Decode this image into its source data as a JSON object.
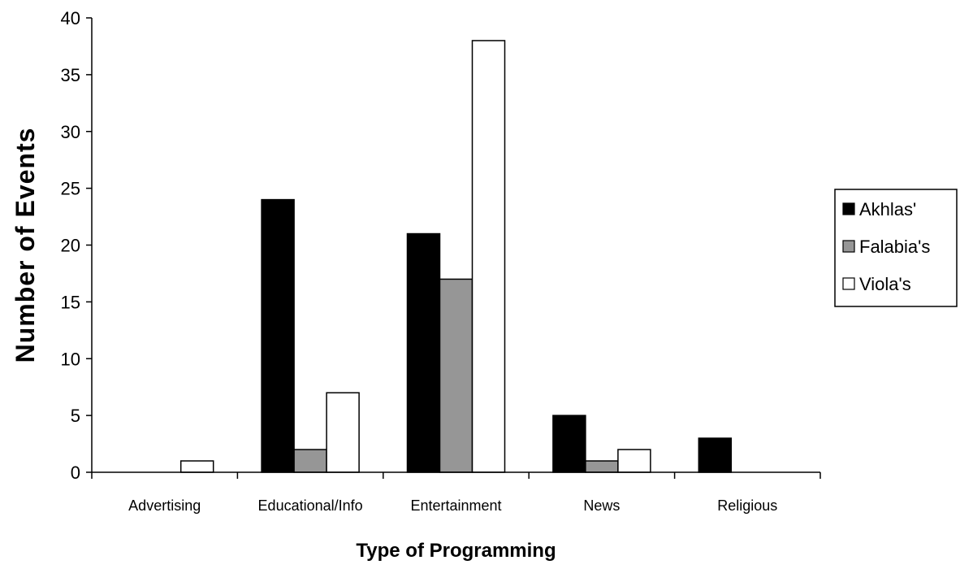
{
  "chart_data": {
    "type": "bar",
    "title": "",
    "xlabel": "Type of Programming",
    "ylabel": "Number of Events",
    "categories": [
      "Advertising",
      "Educational/Info",
      "Entertainment",
      "News",
      "Religious"
    ],
    "series": [
      {
        "name": "Akhlas'",
        "color": "#000000",
        "values": [
          0,
          24,
          21,
          5,
          3
        ]
      },
      {
        "name": "Falabia's",
        "color": "#969696",
        "values": [
          0,
          2,
          17,
          1,
          0
        ]
      },
      {
        "name": "Viola's",
        "color": "#ffffff",
        "values": [
          1,
          7,
          38,
          2,
          0
        ]
      }
    ],
    "ylim": [
      0,
      40
    ],
    "yticks": [
      0,
      5,
      10,
      15,
      20,
      25,
      30,
      35,
      40
    ],
    "grid": false,
    "legend_position": "right"
  }
}
